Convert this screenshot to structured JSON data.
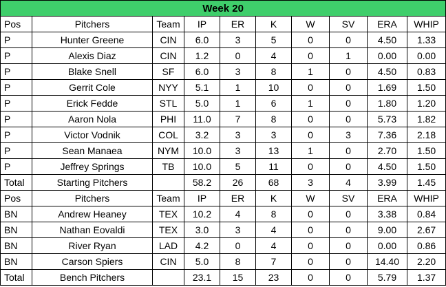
{
  "title": "Week 20",
  "columns": [
    "Pos",
    "Pitchers",
    "Team",
    "IP",
    "ER",
    "K",
    "W",
    "SV",
    "ERA",
    "WHIP"
  ],
  "starting": {
    "rows": [
      [
        "P",
        "Hunter Greene",
        "CIN",
        "6.0",
        "3",
        "5",
        "0",
        "0",
        "4.50",
        "1.33"
      ],
      [
        "P",
        "Alexis Diaz",
        "CIN",
        "1.2",
        "0",
        "4",
        "0",
        "1",
        "0.00",
        "0.00"
      ],
      [
        "P",
        "Blake Snell",
        "SF",
        "6.0",
        "3",
        "8",
        "1",
        "0",
        "4.50",
        "0.83"
      ],
      [
        "P",
        "Gerrit Cole",
        "NYY",
        "5.1",
        "1",
        "10",
        "0",
        "0",
        "1.69",
        "1.50"
      ],
      [
        "P",
        "Erick Fedde",
        "STL",
        "5.0",
        "1",
        "6",
        "1",
        "0",
        "1.80",
        "1.20"
      ],
      [
        "P",
        "Aaron Nola",
        "PHI",
        "11.0",
        "7",
        "8",
        "0",
        "0",
        "5.73",
        "1.82"
      ],
      [
        "P",
        "Victor Vodnik",
        "COL",
        "3.2",
        "3",
        "3",
        "0",
        "3",
        "7.36",
        "2.18"
      ],
      [
        "P",
        "Sean Manaea",
        "NYM",
        "10.0",
        "3",
        "13",
        "1",
        "0",
        "2.70",
        "1.50"
      ],
      [
        "P",
        "Jeffrey Springs",
        "TB",
        "10.0",
        "5",
        "11",
        "0",
        "0",
        "4.50",
        "1.50"
      ]
    ],
    "total": [
      "Total",
      "Starting Pitchers",
      "",
      "58.2",
      "26",
      "68",
      "3",
      "4",
      "3.99",
      "1.45"
    ]
  },
  "bench": {
    "rows": [
      [
        "BN",
        "Andrew Heaney",
        "TEX",
        "10.2",
        "4",
        "8",
        "0",
        "0",
        "3.38",
        "0.84"
      ],
      [
        "BN",
        "Nathan Eovaldi",
        "TEX",
        "3.0",
        "3",
        "4",
        "0",
        "0",
        "9.00",
        "2.67"
      ],
      [
        "BN",
        "River Ryan",
        "LAD",
        "4.2",
        "0",
        "4",
        "0",
        "0",
        "0.00",
        "0.86"
      ],
      [
        "BN",
        "Carson Spiers",
        "CIN",
        "5.0",
        "8",
        "7",
        "0",
        "0",
        "14.40",
        "2.20"
      ]
    ],
    "total": [
      "Total",
      "Bench Pitchers",
      "",
      "23.1",
      "15",
      "23",
      "0",
      "0",
      "5.79",
      "1.37"
    ]
  },
  "colors": {
    "title_background": "#3fce6b",
    "grid": "#000000"
  }
}
